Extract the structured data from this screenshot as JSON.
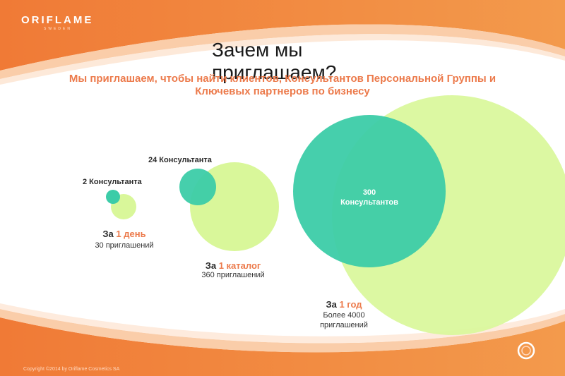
{
  "logo": {
    "brand": "ORIFLAME",
    "sub": "SWEDEN"
  },
  "title": "Зачем мы приглашаем?",
  "subtitle": "Мы приглашаем, чтобы найти клиентов, Консультантов Персональной Группы и Ключевых партнеров по бизнесу",
  "groups": [
    {
      "consultants": "2 Консультанта",
      "period_prefix": "За ",
      "period_highlight": "1 день",
      "invitations": "30 приглашений"
    },
    {
      "consultants": "24 Консультанта",
      "period_prefix": "За ",
      "period_highlight": "1 каталог",
      "invitations": "360 приглашений"
    },
    {
      "consultants_line1": "300",
      "consultants_line2": "Консультантов",
      "period_prefix": "За ",
      "period_highlight": "1 год",
      "invitations_line1": "Более 4000",
      "invitations_line2": "приглашений"
    }
  ],
  "copyright": "Copyright ©2014 by Oriflame Cosmetics SA",
  "colors": {
    "orange": "#ef7a3c",
    "accent_text": "#ec7a4b",
    "teal": "#3ccca8",
    "lime": "#d9f79a"
  }
}
